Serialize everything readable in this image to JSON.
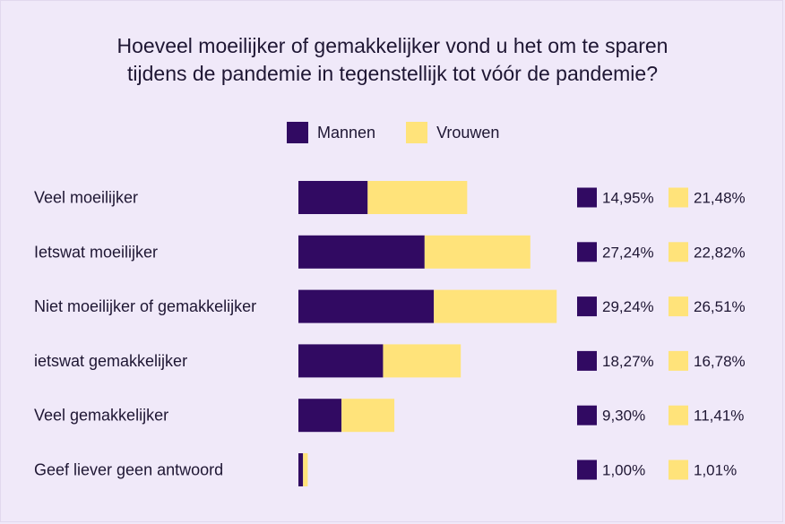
{
  "title_lines": [
    "Hoeveel moeilijker of gemakkelijker vond u het om te sparen",
    "tijdens de pandemie in tegenstellijk tot vóór de pandemie?"
  ],
  "colors": {
    "mannen": "#310a62",
    "vrouwen": "#ffe37a"
  },
  "chart_data": {
    "type": "bar",
    "orientation": "horizontal",
    "stacked": true,
    "title": "Hoeveel moeilijker of gemakkelijker vond u het om te sparen tijdens de pandemie in tegenstellijk tot vóór de pandemie?",
    "legend_position": "top-center",
    "grid": false,
    "categories": [
      "Veel moeilijker",
      "Ietswat moeilijker",
      "Niet moeilijker of gemakkelijker",
      "ietswat gemakkelijker",
      "Veel gemakkelijker",
      "Geef liever geen antwoord"
    ],
    "series": [
      {
        "name": "Mannen",
        "values": [
          14.95,
          27.24,
          29.24,
          18.27,
          9.3,
          1.0
        ],
        "labels": [
          "14,95%",
          "27,24%",
          "29,24%",
          "18,27%",
          "9,30%",
          "1,00%"
        ]
      },
      {
        "name": "Vrouwen",
        "values": [
          21.48,
          22.82,
          26.51,
          16.78,
          11.41,
          1.01
        ],
        "labels": [
          "21,48%",
          "22,82%",
          "26,51%",
          "16,78%",
          "11,41%",
          "1,01%"
        ]
      }
    ]
  }
}
